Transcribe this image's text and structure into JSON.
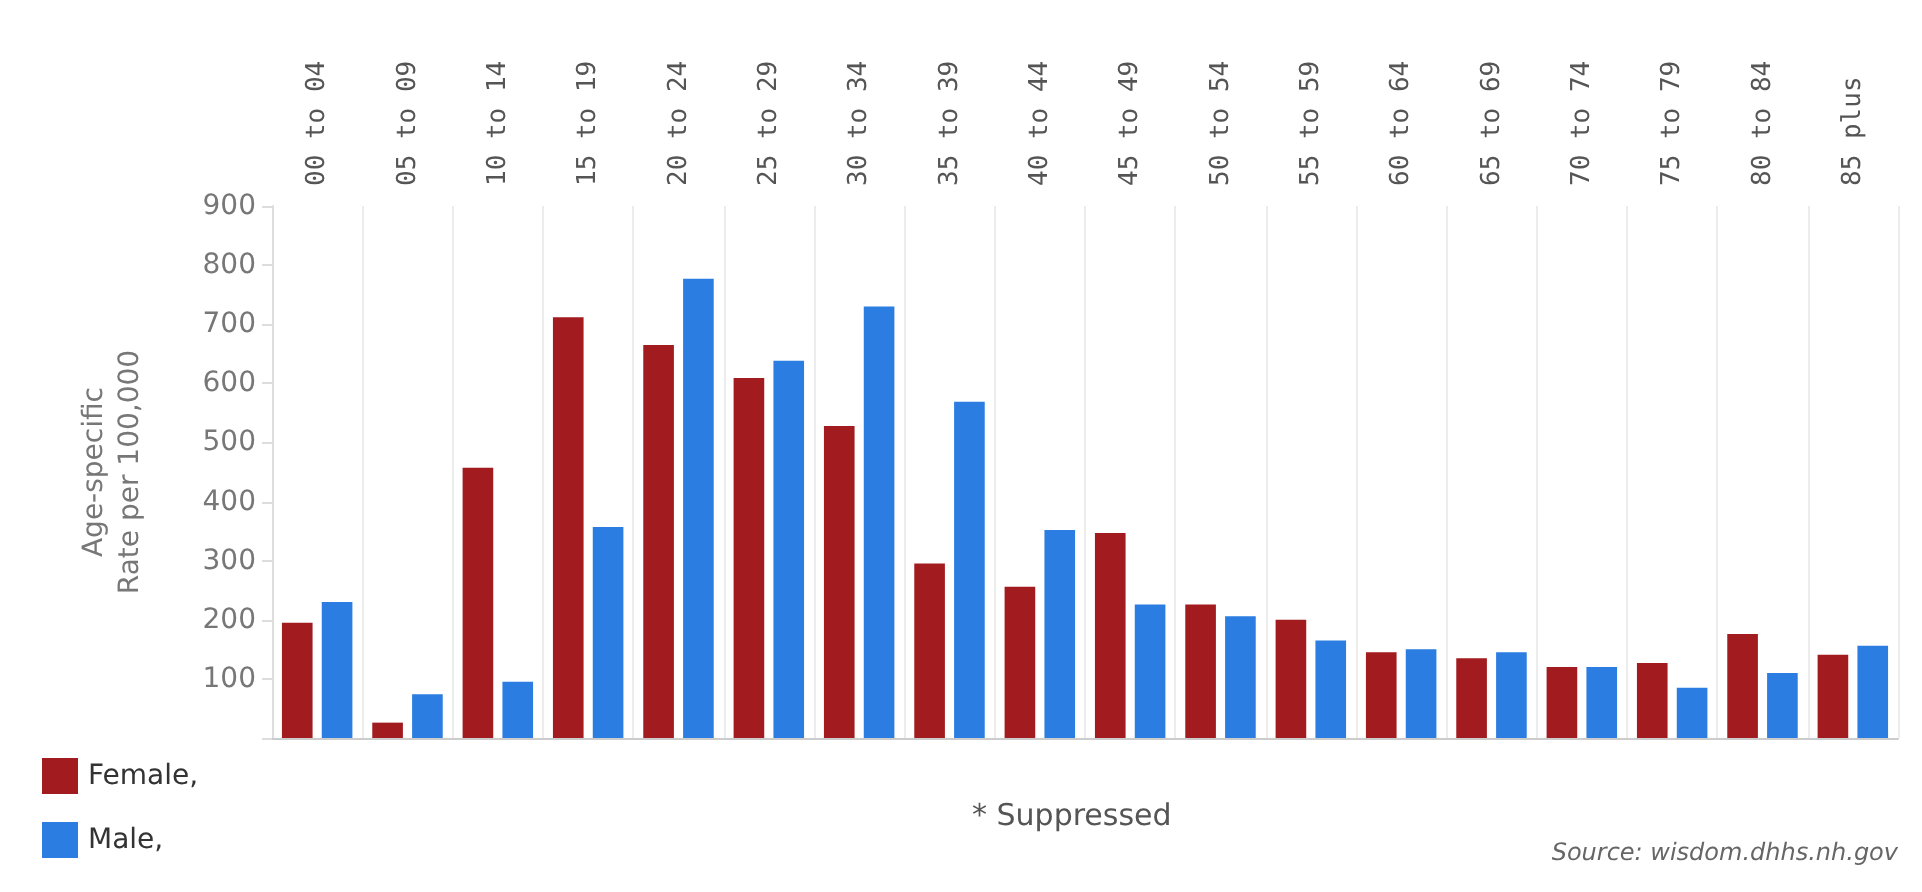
{
  "chart_data": {
    "type": "bar",
    "ylabel": "Age-specific\nRate per 100,000",
    "categories": [
      "00 to 04",
      "05 to 09",
      "10 to 14",
      "15 to 19",
      "20 to 24",
      "25 to 29",
      "30 to 34",
      "35 to 39",
      "40 to 44",
      "45 to 49",
      "50 to 54",
      "55 to 59",
      "60 to 64",
      "65 to 69",
      "70 to 74",
      "75 to 79",
      "80 to 84",
      "85 plus"
    ],
    "series": [
      {
        "name": "Female,",
        "color": "#a11b1f",
        "values": [
          195,
          26,
          457,
          712,
          665,
          609,
          528,
          295,
          256,
          347,
          226,
          200,
          145,
          135,
          120,
          127,
          176,
          141
        ]
      },
      {
        "name": "Male,",
        "color": "#2b7de1",
        "values": [
          230,
          74,
          95,
          357,
          777,
          638,
          730,
          569,
          352,
          226,
          206,
          165,
          150,
          145,
          120,
          85,
          110,
          156
        ]
      }
    ],
    "ylim": [
      0,
      900
    ],
    "yticks": [
      {
        "value": 0,
        "label": null
      },
      100,
      200,
      300,
      400,
      500,
      600,
      700,
      800,
      900
    ],
    "grid": "x",
    "legend": "bottom left",
    "annotations": [
      "* Suppressed",
      "Source: wisdom.dhhs.nh.gov"
    ]
  }
}
